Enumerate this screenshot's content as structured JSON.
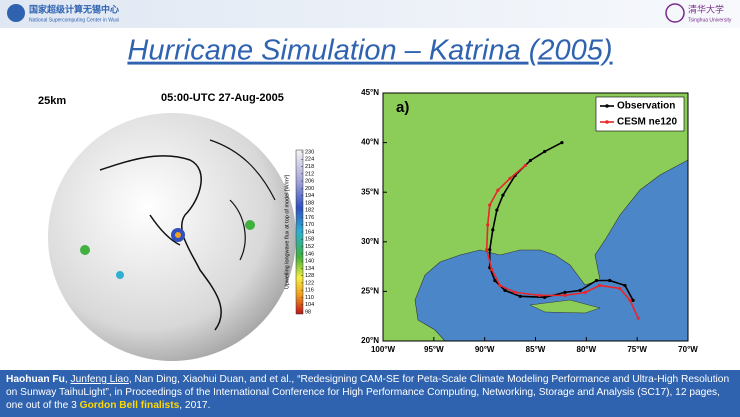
{
  "header": {
    "logo_left": "国家超级计算无锡中心",
    "logo_left_sub": "National Supercomputing Center in Wuxi",
    "logo_right": "清华大学",
    "logo_right_sub": "Tsinghua University"
  },
  "title": "Hurricane Simulation – Katrina (2005)",
  "globe": {
    "resolution": "25km",
    "time": "05:00-UTC 27-Aug-2005",
    "colorbar_label": "Upwelling longwave flux at top of model [W/m²]",
    "colorbar_ticks": [
      98,
      104,
      110,
      116,
      122,
      128,
      134,
      140,
      146,
      152,
      158,
      164,
      170,
      176,
      182,
      188,
      194,
      200,
      206,
      212,
      218,
      224,
      230
    ]
  },
  "chart_data": {
    "type": "line",
    "panel_label": "a)",
    "legend": "upper right",
    "xlim": [
      -100,
      -70
    ],
    "ylim": [
      20,
      45
    ],
    "xticks": [
      {
        "value": -100,
        "label": "100°W"
      },
      {
        "value": -95,
        "label": "95°W"
      },
      {
        "value": -90,
        "label": "90°W"
      },
      {
        "value": -85,
        "label": "85°W"
      },
      {
        "value": -80,
        "label": "80°W"
      },
      {
        "value": -75,
        "label": "75°W"
      },
      {
        "value": -70,
        "label": "70°W"
      }
    ],
    "yticks": [
      {
        "value": 20,
        "label": "20°N"
      },
      {
        "value": 25,
        "label": "25°N"
      },
      {
        "value": 30,
        "label": "30°N"
      },
      {
        "value": 35,
        "label": "35°N"
      },
      {
        "value": 40,
        "label": "40°N"
      },
      {
        "value": 45,
        "label": "45°N"
      }
    ],
    "series": [
      {
        "name": "Observation",
        "color": "#000000",
        "x": [
          -75.4,
          -76.2,
          -77.7,
          -79.0,
          -80.6,
          -82.1,
          -84.1,
          -86.5,
          -88.0,
          -89.0,
          -89.5,
          -89.5,
          -89.2,
          -88.8,
          -88.2,
          -87.0,
          -85.5,
          -84.1,
          -82.4
        ],
        "values": [
          24.1,
          25.6,
          26.1,
          26.1,
          25.1,
          24.9,
          24.4,
          24.5,
          25.1,
          26.1,
          27.4,
          29.2,
          31.2,
          33.2,
          34.7,
          36.7,
          38.2,
          39.1,
          40.0
        ]
      },
      {
        "name": "CESM ne120",
        "color": "#e8262a",
        "x": [
          -74.9,
          -75.7,
          -76.7,
          -78.7,
          -80.1,
          -82.1,
          -84.6,
          -87.0,
          -88.5,
          -89.3,
          -89.8,
          -89.7,
          -89.5,
          -88.7,
          -87.5,
          -86.0
        ],
        "values": [
          22.3,
          24.1,
          25.3,
          25.6,
          24.9,
          24.6,
          24.6,
          24.9,
          25.6,
          27.2,
          29.2,
          31.7,
          33.7,
          35.2,
          36.4,
          37.7
        ]
      }
    ]
  },
  "citation": {
    "parts": [
      "Haohuan Fu",
      ", ",
      "Junfeng Liao",
      ", Nan Ding, Xiaohui Duan, and et al., “Redesigning CAM-SE for Peta-Scale Climate Modeling Performance and Ultra-High Resolution on Sunway TaihuLight”, in Proceedings of the International Conference for High Performance Computing, Networking, Storage and Analysis (SC17), 12 pages, one out of the 3 ",
      "Gordon Bell finalists",
      ", 2017."
    ]
  }
}
